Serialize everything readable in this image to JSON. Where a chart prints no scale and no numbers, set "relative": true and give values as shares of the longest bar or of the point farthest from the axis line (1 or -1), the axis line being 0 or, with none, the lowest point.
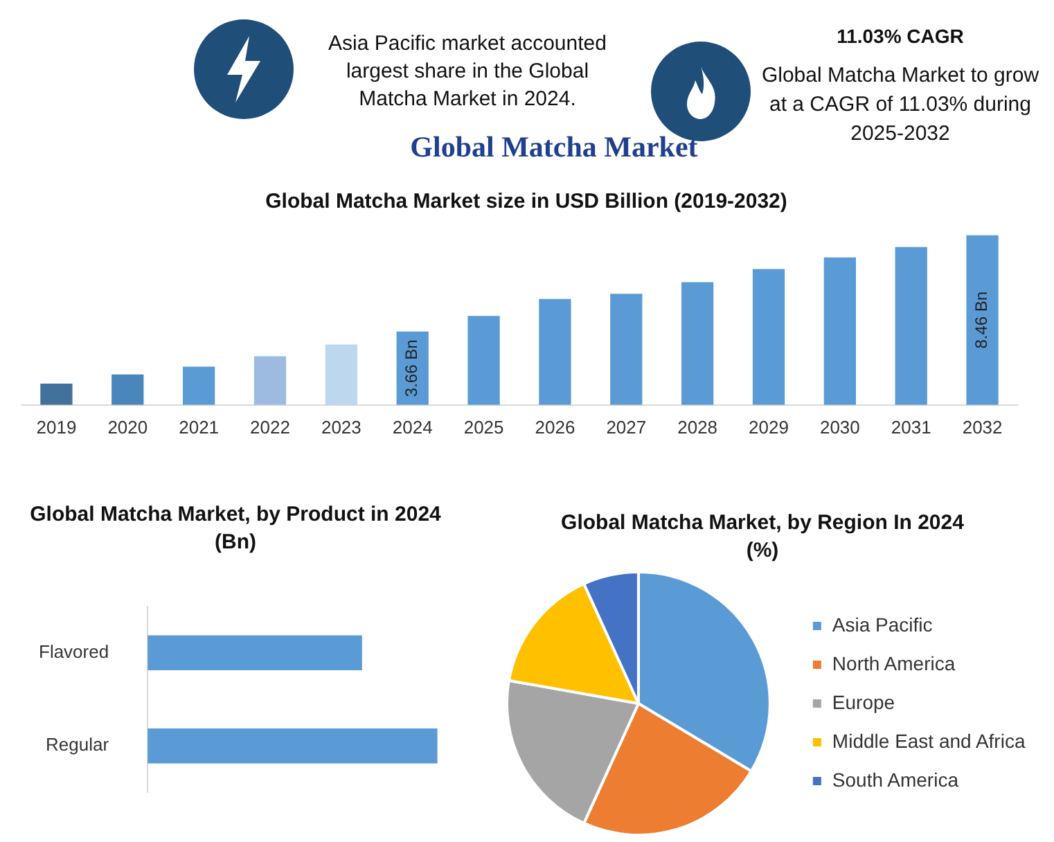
{
  "chart_data": [
    {
      "type": "other",
      "title": "Global Matcha Market",
      "annotations": [
        "Asia Pacific market accounted largest share in the Global Matcha Market in 2024.",
        "11.03% CAGR",
        "Global Matcha Market to grow at a CAGR of 11.03% during 2025-2032"
      ]
    },
    {
      "type": "bar",
      "title": "Global Matcha Market size in USD Billion (2019-2032)",
      "categories": [
        "2019",
        "2020",
        "2021",
        "2022",
        "2023",
        "2024",
        "2025",
        "2026",
        "2027",
        "2028",
        "2029",
        "2030",
        "2031",
        "2032"
      ],
      "values": [
        1.06,
        1.52,
        1.91,
        2.43,
        3.01,
        3.66,
        4.44,
        5.28,
        5.54,
        6.12,
        6.77,
        7.35,
        7.87,
        8.46
      ],
      "colors": [
        "#41719c",
        "#4a86bc",
        "#5b9bd5",
        "#9dbbe0",
        "#bdd7ee",
        "#5b9bd5",
        "#5b9bd5",
        "#5b9bd5",
        "#5b9bd5",
        "#5b9bd5",
        "#5b9bd5",
        "#5b9bd5",
        "#5b9bd5",
        "#5b9bd5"
      ],
      "value_labels": [
        null,
        null,
        null,
        null,
        null,
        "3.66 Bn",
        null,
        null,
        null,
        null,
        null,
        null,
        null,
        "8.46 Bn"
      ],
      "grid": false,
      "legend": false
    },
    {
      "type": "bar",
      "orientation": "horizontal",
      "relative": true,
      "title": "Global Matcha Market, by Product  in 2024 (Bn)",
      "categories": [
        "Flavored",
        "Regular"
      ],
      "values": [
        0.74,
        1
      ],
      "color": "#5b9bd5",
      "grid": false,
      "legend": false
    },
    {
      "type": "pie",
      "title": "Global Matcha Market, by Region In 2024 (%)",
      "categories": [
        "Asia Pacific",
        "North America",
        "Europe",
        "Middle East and Africa",
        "South America"
      ],
      "values": [
        33.6,
        23.2,
        21,
        15.4,
        6.8
      ],
      "colors": [
        "#5b9bd5",
        "#ed7d31",
        "#a5a5a5",
        "#ffc000",
        "#4472c4"
      ],
      "legend": "right"
    }
  ]
}
